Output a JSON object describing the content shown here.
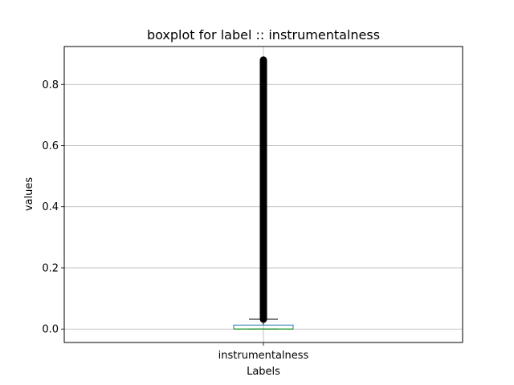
{
  "chart_data": {
    "type": "boxplot",
    "title": "boxplot for label :: instrumentalness",
    "xlabel": "Labels",
    "ylabel": "values",
    "categories": [
      "instrumentalness"
    ],
    "ylim": [
      -0.044,
      0.924
    ],
    "yticks": [
      0.0,
      0.2,
      0.4,
      0.6,
      0.8
    ],
    "ytick_labels": [
      "0.0",
      "0.2",
      "0.4",
      "0.6",
      "0.8"
    ],
    "grid": true,
    "boxes": [
      {
        "category": "instrumentalness",
        "whisker_low": 0.0,
        "q1": 0.0,
        "median": 0.0,
        "q3": 0.013,
        "whisker_high": 0.032,
        "outlier_range": [
          0.032,
          0.88
        ]
      }
    ],
    "colors": {
      "box": "#1f77b4",
      "median": "#2ca02c",
      "whisker": "#000000",
      "outlier": "#000000",
      "grid": "#b0b0b0"
    }
  }
}
